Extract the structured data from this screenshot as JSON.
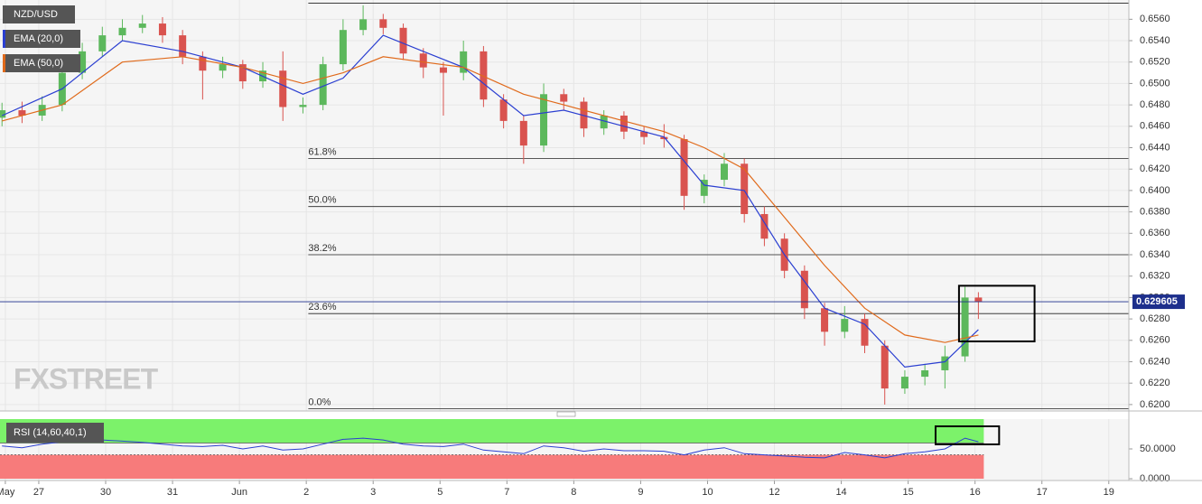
{
  "chart_data": {
    "type": "candlestick",
    "symbol": "NZD/USD",
    "watermark": "FXSTREET",
    "x": [
      -0.55,
      -0.25,
      0.05,
      0.35,
      0.65,
      0.95,
      1.25,
      1.55,
      1.85,
      2.15,
      2.45,
      2.75,
      3.05,
      3.35,
      3.65,
      3.95,
      4.25,
      4.55,
      4.85,
      5.15,
      5.45,
      5.75,
      6.05,
      6.35,
      6.65,
      6.95,
      7.25,
      7.55,
      7.85,
      8.15,
      8.45,
      8.75,
      9.05,
      9.35,
      9.65,
      9.95,
      10.25,
      10.55,
      10.85,
      11.15,
      11.45,
      11.75,
      12.05,
      12.35,
      12.65,
      12.95,
      13.25,
      13.55,
      13.85,
      14.05
    ],
    "open": [
      0.6468,
      0.6475,
      0.647,
      0.648,
      0.651,
      0.653,
      0.6545,
      0.6552,
      0.6556,
      0.6545,
      0.6525,
      0.6512,
      0.6518,
      0.6502,
      0.6512,
      0.6478,
      0.648,
      0.6518,
      0.655,
      0.656,
      0.6552,
      0.6528,
      0.6515,
      0.651,
      0.653,
      0.6485,
      0.6465,
      0.6442,
      0.649,
      0.6483,
      0.6458,
      0.647,
      0.6455,
      0.645,
      0.6448,
      0.6395,
      0.641,
      0.6425,
      0.6378,
      0.6355,
      0.6325,
      0.629,
      0.6268,
      0.628,
      0.6255,
      0.6215,
      0.6226,
      0.6232,
      0.6245,
      0.63
    ],
    "high": [
      0.6482,
      0.6483,
      0.6488,
      0.6517,
      0.6538,
      0.6553,
      0.656,
      0.6564,
      0.6562,
      0.655,
      0.653,
      0.6525,
      0.6522,
      0.652,
      0.653,
      0.6487,
      0.6525,
      0.656,
      0.6573,
      0.6565,
      0.6556,
      0.6533,
      0.652,
      0.654,
      0.6535,
      0.649,
      0.647,
      0.65,
      0.6495,
      0.6487,
      0.6475,
      0.6474,
      0.646,
      0.6462,
      0.6452,
      0.6415,
      0.6435,
      0.643,
      0.6385,
      0.636,
      0.633,
      0.6295,
      0.6292,
      0.6285,
      0.626,
      0.6232,
      0.6238,
      0.6255,
      0.631,
      0.6305
    ],
    "low": [
      0.646,
      0.6463,
      0.6465,
      0.6474,
      0.6504,
      0.6525,
      0.654,
      0.6547,
      0.6538,
      0.6518,
      0.6485,
      0.6505,
      0.6495,
      0.6496,
      0.6465,
      0.6472,
      0.6475,
      0.6512,
      0.6545,
      0.6546,
      0.6522,
      0.6505,
      0.647,
      0.6503,
      0.6478,
      0.6458,
      0.6425,
      0.6436,
      0.6475,
      0.645,
      0.6452,
      0.6448,
      0.6443,
      0.644,
      0.6382,
      0.6388,
      0.6404,
      0.637,
      0.6348,
      0.6318,
      0.628,
      0.6255,
      0.6262,
      0.6248,
      0.62,
      0.621,
      0.6218,
      0.6215,
      0.624,
      0.628
    ],
    "close": [
      0.6475,
      0.647,
      0.648,
      0.651,
      0.653,
      0.6545,
      0.6552,
      0.6556,
      0.6545,
      0.6525,
      0.6512,
      0.6518,
      0.6502,
      0.6512,
      0.6478,
      0.648,
      0.6518,
      0.655,
      0.656,
      0.6552,
      0.6528,
      0.6515,
      0.651,
      0.653,
      0.6485,
      0.6465,
      0.6442,
      0.649,
      0.6483,
      0.6458,
      0.647,
      0.6455,
      0.645,
      0.6448,
      0.6395,
      0.641,
      0.6425,
      0.6378,
      0.6355,
      0.6325,
      0.629,
      0.6268,
      0.628,
      0.6255,
      0.6215,
      0.6226,
      0.6232,
      0.6245,
      0.63,
      0.6296
    ],
    "colors": {
      "up": "#5cb85c",
      "down": "#d9534f"
    },
    "series": [
      {
        "name": "EMA (20,0)",
        "color": "#2b3fd1",
        "x": [
          -0.55,
          0.35,
          1.25,
          2.15,
          3.05,
          3.95,
          4.55,
          5.15,
          5.75,
          6.35,
          7.25,
          7.85,
          8.75,
          9.35,
          9.95,
          10.55,
          11.15,
          11.75,
          12.35,
          12.95,
          13.55,
          14.05
        ],
        "values": [
          0.647,
          0.6495,
          0.654,
          0.653,
          0.6515,
          0.649,
          0.6505,
          0.6545,
          0.653,
          0.6515,
          0.647,
          0.6475,
          0.646,
          0.645,
          0.6405,
          0.64,
          0.634,
          0.629,
          0.6275,
          0.6235,
          0.624,
          0.627
        ]
      },
      {
        "name": "EMA (50,0)",
        "color": "#e06a1b",
        "x": [
          -0.55,
          0.35,
          1.25,
          2.15,
          3.05,
          3.95,
          4.55,
          5.15,
          5.75,
          6.35,
          7.25,
          7.85,
          8.75,
          9.35,
          9.95,
          10.55,
          11.15,
          11.75,
          12.35,
          12.95,
          13.55,
          14.05
        ],
        "values": [
          0.6465,
          0.648,
          0.652,
          0.6525,
          0.6515,
          0.65,
          0.651,
          0.6525,
          0.652,
          0.6515,
          0.649,
          0.648,
          0.6465,
          0.6455,
          0.644,
          0.642,
          0.6375,
          0.633,
          0.629,
          0.6265,
          0.6258,
          0.6265
        ]
      }
    ],
    "xlim": [
      -0.58,
      16.3
    ],
    "xticks": [
      {
        "value": -0.5,
        "label": "May"
      },
      {
        "value": 0,
        "label": "27"
      },
      {
        "value": 1,
        "label": "30"
      },
      {
        "value": 2,
        "label": "31"
      },
      {
        "value": 3,
        "label": "Jun"
      },
      {
        "value": 4,
        "label": "2"
      },
      {
        "value": 5,
        "label": "3"
      },
      {
        "value": 6,
        "label": "5"
      },
      {
        "value": 7,
        "label": "7"
      },
      {
        "value": 8,
        "label": "8"
      },
      {
        "value": 9,
        "label": "9"
      },
      {
        "value": 10,
        "label": "10"
      },
      {
        "value": 11,
        "label": "12"
      },
      {
        "value": 12,
        "label": "14"
      },
      {
        "value": 13,
        "label": "15"
      },
      {
        "value": 14,
        "label": "16"
      },
      {
        "value": 15,
        "label": "17"
      },
      {
        "value": 16,
        "label": "19"
      }
    ],
    "ylim": [
      0.6194,
      0.6578
    ],
    "yticks": [
      {
        "value": 0.62,
        "label": "0.6200"
      },
      {
        "value": 0.622,
        "label": "0.6220"
      },
      {
        "value": 0.624,
        "label": "0.6240"
      },
      {
        "value": 0.626,
        "label": "0.6260"
      },
      {
        "value": 0.628,
        "label": "0.6280"
      },
      {
        "value": 0.63,
        "label": "0.6300"
      },
      {
        "value": 0.632,
        "label": "0.6320"
      },
      {
        "value": 0.634,
        "label": "0.6340"
      },
      {
        "value": 0.636,
        "label": "0.6360"
      },
      {
        "value": 0.638,
        "label": "0.6380"
      },
      {
        "value": 0.64,
        "label": "0.6400"
      },
      {
        "value": 0.642,
        "label": "0.6420"
      },
      {
        "value": 0.644,
        "label": "0.6440"
      },
      {
        "value": 0.646,
        "label": "0.6460"
      },
      {
        "value": 0.648,
        "label": "0.6480"
      },
      {
        "value": 0.65,
        "label": "0.6500"
      },
      {
        "value": 0.652,
        "label": "0.6520"
      },
      {
        "value": 0.654,
        "label": "0.6540"
      },
      {
        "value": 0.656,
        "label": "0.6560"
      }
    ],
    "grid": true,
    "last_price": 0.629605,
    "fibonacci": {
      "x_start": 4.03,
      "levels": [
        {
          "value": 0.6575
        },
        {
          "value": 0.643,
          "label": "61.8%"
        },
        {
          "value": 0.6385,
          "label": "50.0%"
        },
        {
          "value": 0.634,
          "label": "38.2%"
        },
        {
          "value": 0.6285,
          "label": "23.6%"
        },
        {
          "value": 0.6196,
          "label": "0.0%"
        }
      ]
    },
    "highlight_box": {
      "x": [
        13.76,
        14.89
      ],
      "y": [
        0.6259,
        0.6311
      ]
    },
    "rsi": {
      "name": "RSI (14,60,40,1)",
      "color": "#2b3fd1",
      "values": [
        55,
        52,
        58,
        62,
        64,
        65,
        63,
        61,
        58,
        55,
        54,
        56,
        50,
        55,
        48,
        50,
        58,
        66,
        68,
        65,
        58,
        55,
        54,
        58,
        48,
        45,
        42,
        55,
        52,
        46,
        50,
        47,
        47,
        46,
        40,
        48,
        52,
        42,
        40,
        38,
        36,
        35,
        44,
        40,
        35,
        42,
        45,
        50,
        68,
        62
      ],
      "ylim": [
        0,
        100
      ],
      "yticks": [
        {
          "value": 50,
          "label": "50.0000"
        },
        {
          "value": 0,
          "label": "0.0000"
        }
      ],
      "upper": 60,
      "lower": 40,
      "upper_color": "#7cf26a",
      "lower_color": "#f77b7b",
      "highlight_box": {
        "x": [
          13.41,
          14.36
        ],
        "y": [
          57.6,
          87.9
        ]
      }
    }
  }
}
